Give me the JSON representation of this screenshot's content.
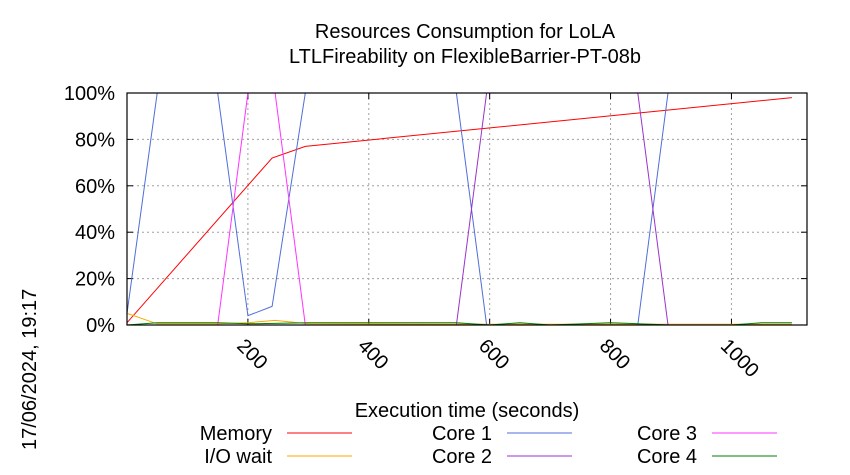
{
  "chart_data": {
    "type": "line",
    "title": "Resources Consumption for LoLA",
    "subtitle": "LTLFireability on FlexibleBarrier-PT-08b",
    "xlabel": "Execution time (seconds)",
    "ylabel": "",
    "timestamp": "17/06/2024, 19:17",
    "xlim": [
      0,
      1125
    ],
    "ylim": [
      0,
      100
    ],
    "x_ticks": [
      200,
      400,
      600,
      800,
      1000
    ],
    "y_ticks": [
      0,
      20,
      40,
      60,
      80,
      100
    ],
    "y_tick_labels": [
      "0%",
      "20%",
      "40%",
      "60%",
      "80%",
      "100%"
    ],
    "grid": true,
    "legend_position": "bottom",
    "series": [
      {
        "name": "Memory",
        "color": "#ff0000",
        "points": [
          [
            0,
            1
          ],
          [
            240,
            72
          ],
          [
            295,
            77
          ],
          [
            1100,
            98
          ]
        ]
      },
      {
        "name": "I/O wait",
        "color": "#ffa500",
        "points": [
          [
            0,
            5
          ],
          [
            50,
            0.5
          ],
          [
            150,
            0.5
          ],
          [
            200,
            1
          ],
          [
            245,
            2
          ],
          [
            300,
            0.5
          ],
          [
            600,
            0.3
          ],
          [
            1100,
            0.3
          ]
        ]
      },
      {
        "name": "Core 1",
        "color": "#4f6ed8",
        "points": [
          [
            0,
            5
          ],
          [
            50,
            100
          ],
          [
            150,
            100
          ],
          [
            200,
            4
          ],
          [
            240,
            8
          ],
          [
            295,
            100
          ],
          [
            545,
            100
          ],
          [
            595,
            0
          ],
          [
            845,
            0
          ],
          [
            895,
            100
          ],
          [
            1100,
            100
          ]
        ]
      },
      {
        "name": "Core 2",
        "color": "#9933cc",
        "points": [
          [
            0,
            0
          ],
          [
            545,
            0
          ],
          [
            595,
            100
          ],
          [
            845,
            100
          ],
          [
            895,
            0
          ],
          [
            1100,
            0
          ]
        ]
      },
      {
        "name": "Core 3",
        "color": "#ff33ff",
        "points": [
          [
            0,
            0
          ],
          [
            150,
            0
          ],
          [
            200,
            100
          ],
          [
            245,
            100
          ],
          [
            295,
            0
          ],
          [
            1100,
            0
          ]
        ]
      },
      {
        "name": "Core 4",
        "color": "#007f00",
        "points": [
          [
            0,
            0
          ],
          [
            50,
            1
          ],
          [
            150,
            1
          ],
          [
            200,
            0.5
          ],
          [
            300,
            1
          ],
          [
            545,
            1
          ],
          [
            600,
            0
          ],
          [
            650,
            1
          ],
          [
            700,
            0
          ],
          [
            800,
            1
          ],
          [
            900,
            0
          ],
          [
            1000,
            0
          ],
          [
            1050,
            1
          ],
          [
            1100,
            1
          ]
        ]
      }
    ]
  }
}
